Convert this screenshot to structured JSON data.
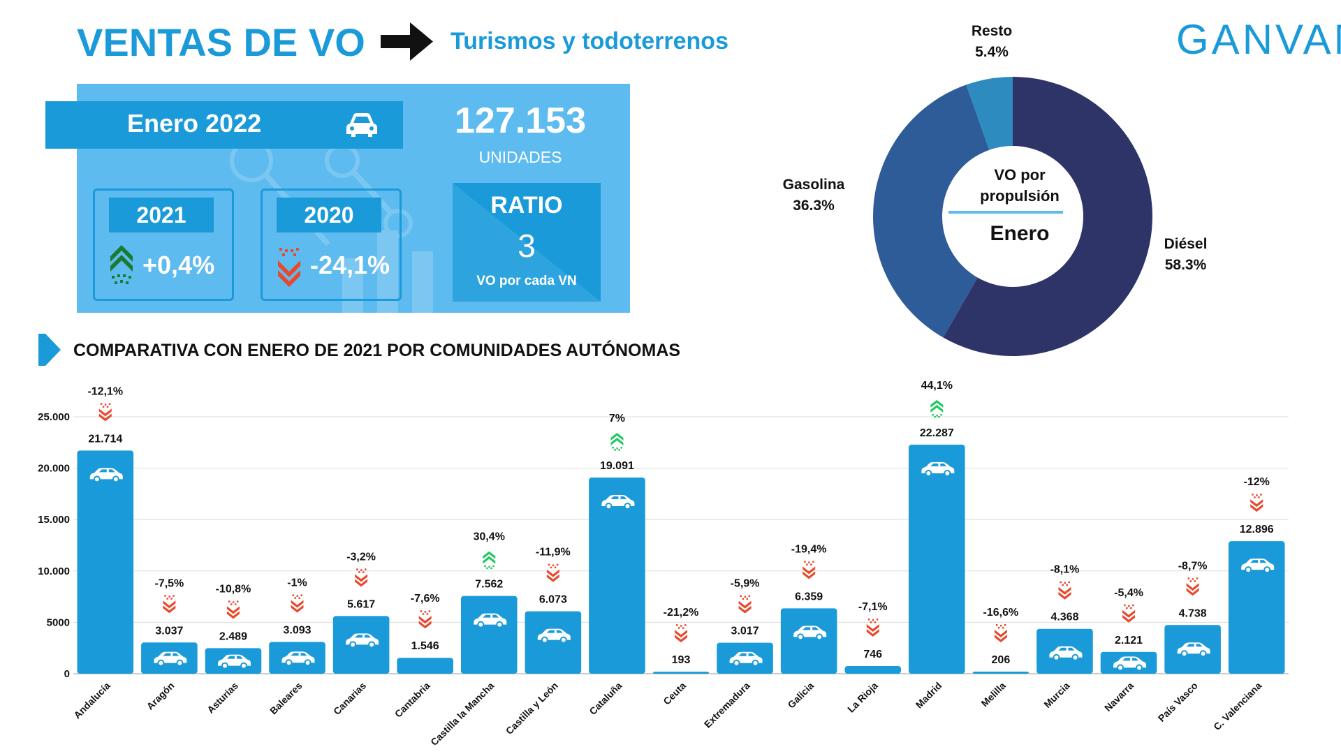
{
  "header": {
    "title": "VENTAS DE VO",
    "subtitle": "Turismos y todoterrenos",
    "logo": "GANVAM"
  },
  "summary": {
    "period": "Enero 2022",
    "units_value": "127.153",
    "units_label": "UNIDADES",
    "comparisons": [
      {
        "year": "2021",
        "change": "+0,4%",
        "direction": "up"
      },
      {
        "year": "2020",
        "change": "-24,1%",
        "direction": "down"
      }
    ],
    "ratio_label": "RATIO",
    "ratio_value": "3",
    "ratio_sub": "VO por cada VN"
  },
  "donut": {
    "center_title": "VO por propulsión",
    "center_title_line1": "VO por",
    "center_title_line2": "propulsión",
    "center_month": "Enero",
    "segments": [
      {
        "name": "Diésel",
        "value": 58.3,
        "label": "58.3%",
        "color": "#2f3468"
      },
      {
        "name": "Gasolina",
        "value": 36.3,
        "label": "36.3%",
        "color": "#2e5c98"
      },
      {
        "name": "Resto",
        "value": 5.4,
        "label": "5.4%",
        "color": "#2e8bc0"
      }
    ]
  },
  "section": {
    "title": "COMPARATIVA CON ENERO DE 2021 POR COMUNIDADES AUTÓNOMAS"
  },
  "colors": {
    "accent": "#1a9ad9",
    "panel": "#5ebbef",
    "up": "#1fc95f",
    "down": "#e8482b",
    "up_dark": "#1a7a30"
  },
  "chart_data": {
    "type": "bar",
    "title": "COMPARATIVA CON ENERO DE 2021 POR COMUNIDADES AUTÓNOMAS",
    "xlabel": "",
    "ylabel": "",
    "ylim": [
      0,
      25000
    ],
    "yticks": [
      0,
      5000,
      10000,
      15000,
      20000,
      25000
    ],
    "ytick_labels": [
      "0",
      "5000",
      "10.000",
      "15.000",
      "20.000",
      "25.000"
    ],
    "grid": true,
    "categories": [
      "Andalucía",
      "Aragón",
      "Asturias",
      "Baleares",
      "Canarias",
      "Cantabria",
      "Castilla la Mancha",
      "Castilla y León",
      "Cataluña",
      "Ceuta",
      "Extremadura",
      "Galicia",
      "La Rioja",
      "Madrid",
      "Melilla",
      "Murcia",
      "Navarra",
      "País Vasco",
      "C. Valenciana"
    ],
    "values": [
      21714,
      3037,
      2489,
      3093,
      5617,
      1546,
      7562,
      6073,
      19091,
      193,
      3017,
      6359,
      746,
      22287,
      206,
      4368,
      2121,
      4738,
      12896
    ],
    "value_labels": [
      "21.714",
      "3.037",
      "2.489",
      "3.093",
      "5.617",
      "1.546",
      "7.562",
      "6.073",
      "19.091",
      "193",
      "3.017",
      "6.359",
      "746",
      "22.287",
      "206",
      "4.368",
      "2.121",
      "4.738",
      "12.896"
    ],
    "changes": [
      "-12,1%",
      "-7,5%",
      "-10,8%",
      "-1%",
      "-3,2%",
      "-7,6%",
      "30,4%",
      "-11,9%",
      "7%",
      "-21,2%",
      "-5,9%",
      "-19,4%",
      "-7,1%",
      "44,1%",
      "-16,6%",
      "-8,1%",
      "-5,4%",
      "-8,7%",
      "-12%"
    ],
    "directions": [
      "down",
      "down",
      "down",
      "down",
      "down",
      "down",
      "up",
      "down",
      "up",
      "down",
      "down",
      "down",
      "down",
      "up",
      "down",
      "down",
      "down",
      "down",
      "down"
    ]
  }
}
